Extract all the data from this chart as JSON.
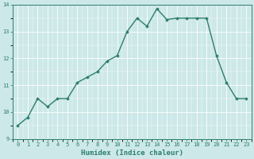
{
  "x": [
    0,
    1,
    2,
    3,
    4,
    5,
    6,
    7,
    8,
    9,
    10,
    11,
    12,
    13,
    14,
    15,
    16,
    17,
    18,
    19,
    20,
    21,
    22,
    23
  ],
  "y": [
    9.5,
    9.8,
    10.5,
    10.2,
    10.5,
    10.5,
    11.1,
    11.3,
    11.5,
    11.9,
    12.1,
    13.0,
    13.5,
    13.2,
    13.85,
    13.45,
    13.5,
    13.5,
    13.5,
    13.5,
    12.1,
    11.1,
    10.5,
    10.5
  ],
  "xlim": [
    -0.5,
    23.5
  ],
  "ylim": [
    9,
    14
  ],
  "yticks": [
    9,
    10,
    11,
    12,
    13,
    14
  ],
  "xticks": [
    0,
    1,
    2,
    3,
    4,
    5,
    6,
    7,
    8,
    9,
    10,
    11,
    12,
    13,
    14,
    15,
    16,
    17,
    18,
    19,
    20,
    21,
    22,
    23
  ],
  "xlabel": "Humidex (Indice chaleur)",
  "line_color": "#2e7d6e",
  "marker": "D",
  "marker_size": 1.8,
  "bg_color": "#cce8e8",
  "grid_color": "#ffffff",
  "tick_color": "#2e7d6e",
  "label_color": "#2e7d6e",
  "linewidth": 1.0,
  "tick_fontsize": 5.0,
  "xlabel_fontsize": 6.5
}
